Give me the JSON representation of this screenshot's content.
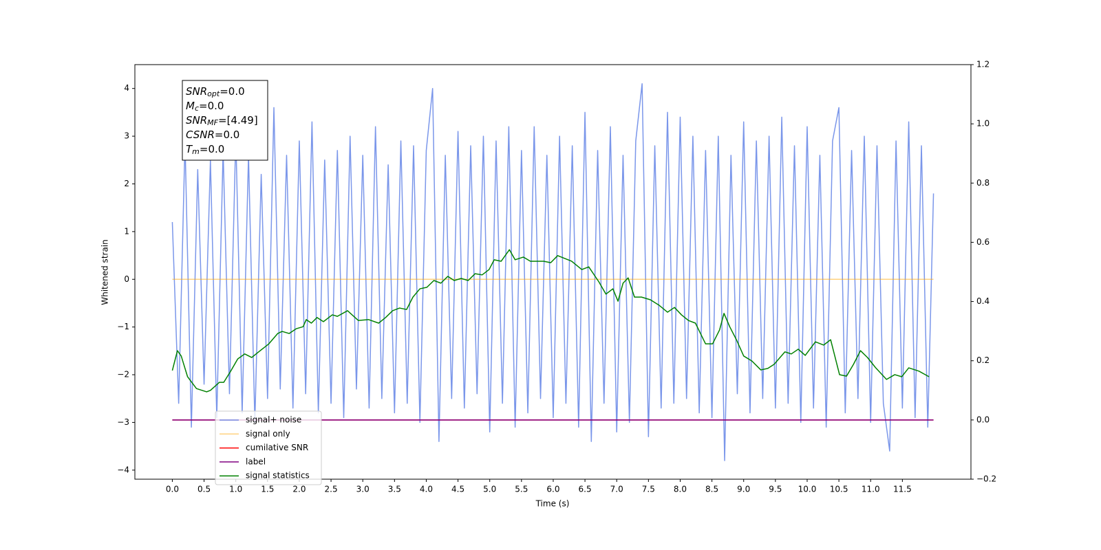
{
  "chart_data": {
    "type": "line",
    "xlabel": "Time (s)",
    "ylabel": "Whitened strain",
    "xlim": [
      -0.59,
      12.58
    ],
    "ylim": [
      -4.19,
      4.5
    ],
    "y2lim": [
      -0.2,
      1.2
    ],
    "xticks": [
      {
        "value": 0,
        "label": "0.0"
      },
      0.5,
      {
        "value": 1,
        "label": "1.0"
      },
      1.5,
      {
        "value": 2,
        "label": "2.0"
      },
      2.5,
      {
        "value": 3,
        "label": "3.0"
      },
      3.5,
      {
        "value": 4,
        "label": "4.0"
      },
      4.5,
      {
        "value": 5,
        "label": "5.0"
      },
      5.5,
      {
        "value": 6,
        "label": "6.0"
      },
      6.5,
      {
        "value": 7,
        "label": "7.0"
      },
      7.5,
      {
        "value": 8,
        "label": "8.0"
      },
      8.5,
      {
        "value": 9,
        "label": "9.0"
      },
      9.5,
      {
        "value": 10,
        "label": "10.0"
      },
      10.5,
      {
        "value": 11,
        "label": "11.0"
      },
      11.5
    ],
    "yticks": [
      {
        "value": -4,
        "label": "−4"
      },
      {
        "value": -3,
        "label": "−3"
      },
      {
        "value": -2,
        "label": "−2"
      },
      {
        "value": -1,
        "label": "−1"
      },
      0,
      1,
      2,
      3,
      4
    ],
    "y2ticks": [
      {
        "value": -0.2,
        "label": "−0.2"
      },
      {
        "value": 0,
        "label": "0.0"
      },
      0.2,
      0.4,
      0.6,
      0.8,
      {
        "value": 1,
        "label": "1.0"
      },
      1.2
    ],
    "grid": false,
    "legend": "lower left",
    "series": [
      {
        "name": "signal+ noise",
        "color": "#4169e1",
        "alpha": 0.7,
        "axis": "y",
        "x": [
          0,
          0.1,
          0.2,
          0.3,
          0.4,
          0.5,
          0.6,
          0.7,
          0.8,
          0.9,
          1,
          1.1,
          1.2,
          1.3,
          1.4,
          1.5,
          1.6,
          1.7,
          1.8,
          1.9,
          2,
          2.1,
          2.2,
          2.3,
          2.4,
          2.5,
          2.6,
          2.7,
          2.8,
          2.9,
          3,
          3.1,
          3.2,
          3.3,
          3.4,
          3.5,
          3.6,
          3.7,
          3.8,
          3.9,
          4,
          4.1,
          4.2,
          4.3,
          4.4,
          4.5,
          4.6,
          4.7,
          4.8,
          4.9,
          5,
          5.1,
          5.2,
          5.3,
          5.4,
          5.5,
          5.6,
          5.7,
          5.8,
          5.9,
          6,
          6.1,
          6.2,
          6.3,
          6.4,
          6.5,
          6.6,
          6.7,
          6.8,
          6.9,
          7,
          7.1,
          7.2,
          7.3,
          7.4,
          7.5,
          7.6,
          7.7,
          7.8,
          7.9,
          8,
          8.1,
          8.2,
          8.3,
          8.4,
          8.5,
          8.6,
          8.7,
          8.8,
          8.9,
          9,
          9.1,
          9.2,
          9.3,
          9.4,
          9.5,
          9.6,
          9.7,
          9.8,
          9.9,
          10,
          10.1,
          10.2,
          10.3,
          10.4,
          10.5,
          10.6,
          10.7,
          10.8,
          10.9,
          11,
          11.1,
          11.2,
          11.3,
          11.4,
          11.5,
          11.6,
          11.7,
          11.8,
          11.9,
          11.99
        ],
        "values": [
          1.2,
          -2.6,
          2.9,
          -3.1,
          2.3,
          -2.2,
          2.5,
          -2.9,
          2.7,
          -2.4,
          3.0,
          -2.8,
          2.6,
          -3.0,
          2.2,
          -2.5,
          3.6,
          -2.3,
          2.6,
          -2.7,
          2.9,
          -2.4,
          3.3,
          -2.8,
          2.5,
          -2.6,
          2.7,
          -2.9,
          3.0,
          -2.3,
          2.6,
          -2.7,
          3.2,
          -2.5,
          2.4,
          -2.8,
          2.9,
          -2.6,
          2.8,
          -3.0,
          2.7,
          4.0,
          -3.4,
          2.6,
          -2.5,
          3.1,
          -2.7,
          2.8,
          -2.4,
          3.0,
          -3.2,
          2.9,
          -2.6,
          3.2,
          -3.1,
          2.7,
          -2.8,
          3.2,
          -2.5,
          2.6,
          -2.9,
          3.0,
          -2.6,
          2.8,
          -3.1,
          3.5,
          -3.4,
          2.7,
          -2.6,
          3.2,
          -3.2,
          2.6,
          -3.0,
          2.9,
          4.1,
          -3.3,
          2.8,
          -2.7,
          3.5,
          -2.6,
          3.4,
          -2.5,
          3.0,
          -2.8,
          2.7,
          -2.9,
          3.0,
          -3.8,
          2.6,
          -2.4,
          3.3,
          -2.8,
          2.9,
          -2.5,
          3.0,
          -2.7,
          3.4,
          -2.6,
          2.8,
          -3.0,
          3.2,
          -2.7,
          2.6,
          -3.1,
          2.9,
          3.6,
          -2.8,
          2.7,
          -2.5,
          3.0,
          -3.0,
          2.8,
          -2.6,
          -3.6,
          2.9,
          -2.7,
          3.3,
          -2.9,
          2.8,
          -3.1,
          1.8
        ]
      },
      {
        "name": "signal only",
        "color": "#ffa500",
        "alpha": 0.5,
        "axis": "y",
        "x": [
          0,
          11.99
        ],
        "values": [
          0,
          0
        ]
      },
      {
        "name": "cumilative SNR",
        "color": "#ff0000",
        "alpha": 1,
        "axis": "y2",
        "x": [
          0,
          11.99
        ],
        "values": [
          0,
          0
        ]
      },
      {
        "name": "label",
        "color": "#800080",
        "alpha": 1,
        "axis": "y2",
        "x": [
          0,
          11.99
        ],
        "values": [
          0,
          0
        ]
      },
      {
        "name": "signal statistics",
        "color": "#008000",
        "alpha": 1,
        "axis": "y2",
        "x": [
          0,
          0.08,
          0.14,
          0.24,
          0.38,
          0.54,
          0.6,
          0.74,
          0.81,
          0.92,
          1.03,
          1.14,
          1.25,
          1.36,
          1.52,
          1.66,
          1.73,
          1.84,
          1.95,
          2.06,
          2.11,
          2.19,
          2.28,
          2.38,
          2.52,
          2.6,
          2.76,
          2.93,
          3.09,
          3.25,
          3.36,
          3.47,
          3.58,
          3.69,
          3.79,
          3.9,
          4.01,
          4.12,
          4.23,
          4.34,
          4.44,
          4.55,
          4.66,
          4.77,
          4.88,
          4.99,
          5.07,
          5.18,
          5.31,
          5.4,
          5.53,
          5.64,
          5.85,
          5.96,
          6.07,
          6.29,
          6.45,
          6.56,
          6.72,
          6.83,
          6.94,
          7.02,
          7.1,
          7.18,
          7.28,
          7.39,
          7.53,
          7.67,
          7.8,
          7.91,
          8.02,
          8.13,
          8.24,
          8.4,
          8.51,
          8.62,
          8.69,
          8.78,
          8.89,
          9,
          9.13,
          9.27,
          9.38,
          9.48,
          9.65,
          9.75,
          9.86,
          9.97,
          10.13,
          10.26,
          10.37,
          10.51,
          10.62,
          10.73,
          10.84,
          10.95,
          11.08,
          11.25,
          11.38,
          11.49,
          11.6,
          11.76,
          11.92
        ],
        "values": [
          0.167,
          0.234,
          0.216,
          0.146,
          0.106,
          0.095,
          0.1,
          0.127,
          0.127,
          0.165,
          0.206,
          0.223,
          0.211,
          0.23,
          0.257,
          0.292,
          0.299,
          0.292,
          0.308,
          0.315,
          0.339,
          0.327,
          0.346,
          0.332,
          0.355,
          0.35,
          0.369,
          0.336,
          0.339,
          0.327,
          0.346,
          0.369,
          0.378,
          0.373,
          0.415,
          0.443,
          0.448,
          0.471,
          0.462,
          0.485,
          0.471,
          0.478,
          0.471,
          0.494,
          0.49,
          0.508,
          0.541,
          0.536,
          0.575,
          0.541,
          0.55,
          0.536,
          0.536,
          0.531,
          0.555,
          0.536,
          0.508,
          0.517,
          0.466,
          0.425,
          0.443,
          0.401,
          0.462,
          0.48,
          0.415,
          0.415,
          0.406,
          0.387,
          0.364,
          0.38,
          0.355,
          0.336,
          0.327,
          0.257,
          0.257,
          0.304,
          0.36,
          0.315,
          0.269,
          0.216,
          0.199,
          0.169,
          0.174,
          0.188,
          0.23,
          0.223,
          0.239,
          0.218,
          0.264,
          0.253,
          0.271,
          0.153,
          0.148,
          0.188,
          0.234,
          0.211,
          0.176,
          0.137,
          0.153,
          0.146,
          0.176,
          0.165,
          0.146
        ]
      }
    ],
    "annotations": [
      {
        "main": "SNR",
        "sub": "opt",
        "rest": "=0.0"
      },
      {
        "main": "M",
        "sub": "c",
        "rest": "=0.0"
      },
      {
        "main": "SNR",
        "sub": "MF",
        "rest": "=[4.49]"
      },
      {
        "main": "CSNR",
        "rest": "=0.0"
      },
      {
        "main": "T",
        "sub": "m",
        "rest": "=0.0"
      }
    ]
  }
}
